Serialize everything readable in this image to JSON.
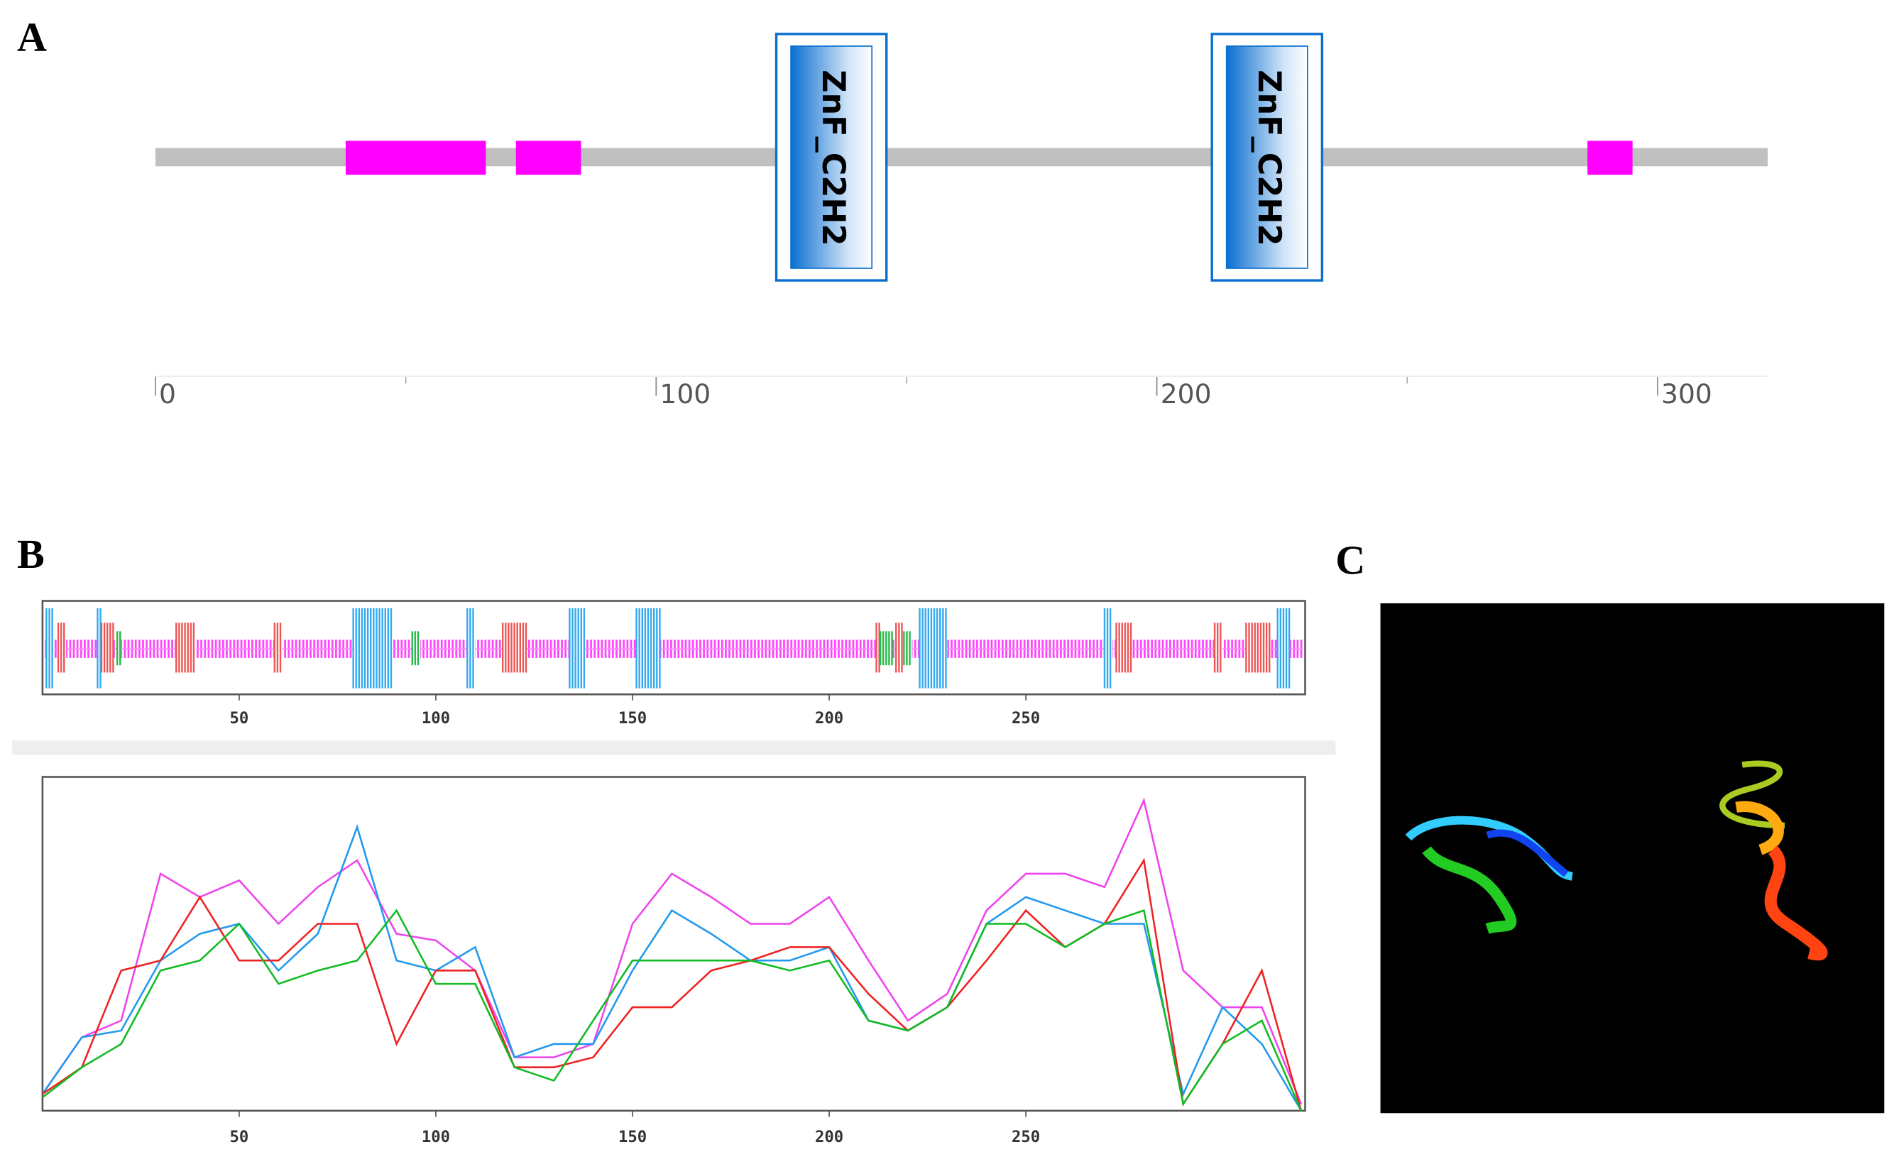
{
  "panel_labels": [
    "A",
    "B",
    "C"
  ],
  "chart_data": [
    {
      "type": "domain",
      "xlim": [
        0,
        322
      ],
      "xticks": [
        0,
        100,
        200,
        300
      ],
      "minor_xticks": [
        50,
        150,
        250
      ],
      "bar_color": "#c0c0c0",
      "color": "#ff00ff",
      "regions": [
        [
          38,
          66
        ],
        [
          72,
          85
        ],
        [
          286,
          295
        ]
      ],
      "domains": [
        {
          "label": "ZnF_C2H2",
          "start": 124,
          "end": 146
        },
        {
          "label": "ZnF_C2H2",
          "start": 211,
          "end": 233
        }
      ]
    },
    {
      "type": "track",
      "xlim": [
        0,
        321
      ],
      "xticks": [
        50,
        100,
        150,
        200,
        250
      ],
      "coil_color": "#ff00ff",
      "series": [
        {
          "color": "#33aaee",
          "segments": [
            [
              1,
              3
            ],
            [
              14,
              15
            ],
            [
              79,
              89
            ],
            [
              108,
              110
            ],
            [
              134,
              138
            ],
            [
              151,
              157
            ],
            [
              223,
              230
            ],
            [
              270,
              272
            ],
            [
              314,
              317
            ]
          ]
        },
        {
          "color": "#ee5555",
          "segments": [
            [
              4,
              6
            ],
            [
              15,
              18
            ],
            [
              34,
              39
            ],
            [
              59,
              61
            ],
            [
              117,
              123
            ],
            [
              212,
              213
            ],
            [
              217,
              219
            ],
            [
              273,
              277
            ],
            [
              298,
              300
            ],
            [
              306,
              312
            ]
          ]
        },
        {
          "color": "#22bb44",
          "segments": [
            [
              19,
              20
            ],
            [
              94,
              96
            ],
            [
              213,
              216
            ],
            [
              219,
              221
            ]
          ]
        }
      ]
    },
    {
      "type": "line",
      "xlim": [
        0,
        321
      ],
      "ylim": [
        0,
        100
      ],
      "xticks": [
        50,
        100,
        150,
        200,
        250
      ],
      "x": [
        0,
        10,
        20,
        30,
        40,
        50,
        60,
        70,
        80,
        90,
        100,
        110,
        120,
        130,
        140,
        150,
        160,
        170,
        180,
        190,
        200,
        210,
        220,
        230,
        240,
        250,
        260,
        270,
        280,
        290,
        300,
        310,
        320
      ],
      "series": [
        {
          "color": "#ee44ee",
          "values": [
            5,
            22,
            27,
            71,
            64,
            69,
            56,
            67,
            75,
            53,
            51,
            42,
            16,
            16,
            20,
            56,
            71,
            64,
            56,
            56,
            64,
            45,
            27,
            35,
            60,
            71,
            71,
            67,
            93,
            42,
            31,
            31,
            2
          ]
        },
        {
          "color": "#2299ee",
          "values": [
            5,
            22,
            24,
            45,
            53,
            56,
            42,
            53,
            85,
            45,
            42,
            49,
            16,
            20,
            20,
            42,
            60,
            53,
            45,
            45,
            49,
            27,
            24,
            31,
            56,
            64,
            60,
            56,
            56,
            5,
            31,
            20,
            0
          ]
        },
        {
          "color": "#ee2222",
          "values": [
            5,
            13,
            42,
            45,
            64,
            45,
            45,
            56,
            56,
            20,
            42,
            42,
            13,
            13,
            16,
            31,
            31,
            42,
            45,
            49,
            49,
            35,
            24,
            31,
            45,
            60,
            49,
            56,
            75,
            2,
            20,
            42,
            0
          ]
        },
        {
          "color": "#11bb22",
          "values": [
            4,
            13,
            20,
            42,
            45,
            56,
            38,
            42,
            45,
            60,
            38,
            38,
            13,
            9,
            27,
            45,
            45,
            45,
            45,
            42,
            45,
            27,
            24,
            31,
            56,
            56,
            49,
            56,
            60,
            2,
            20,
            27,
            0
          ]
        }
      ]
    }
  ]
}
